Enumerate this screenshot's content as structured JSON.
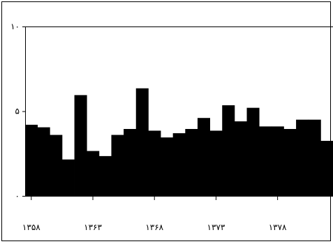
{
  "chart_data": {
    "type": "bar",
    "title": "",
    "xlabel": "",
    "ylabel": "",
    "ylim": [
      0,
      10
    ],
    "yticks": [
      {
        "value": 0,
        "label": "۰"
      },
      {
        "value": 5,
        "label": "۵"
      },
      {
        "value": 10,
        "label": "۱۰"
      }
    ],
    "xticks": [
      {
        "year": 1358,
        "label": "۱۳۵۸"
      },
      {
        "year": 1363,
        "label": "۱۳۶۳"
      },
      {
        "year": 1368,
        "label": "۱۳۶۸"
      },
      {
        "year": 1373,
        "label": "۱۳۷۳"
      },
      {
        "year": 1378,
        "label": "۱۳۷۸"
      }
    ],
    "categories": [
      1358,
      1359,
      1360,
      1361,
      1362,
      1363,
      1364,
      1365,
      1366,
      1367,
      1368,
      1369,
      1370,
      1371,
      1372,
      1373,
      1374,
      1375,
      1376,
      1377,
      1378,
      1379,
      1380,
      1381,
      1382
    ],
    "values": [
      4.2,
      4.05,
      3.6,
      2.15,
      5.95,
      2.65,
      2.35,
      3.6,
      3.95,
      6.35,
      3.85,
      3.45,
      3.7,
      3.95,
      4.6,
      3.85,
      5.35,
      4.4,
      5.2,
      4.1,
      4.1,
      3.95,
      4.5,
      4.5,
      3.25
    ],
    "bar_color": "#000000",
    "grid": false,
    "legend": "none"
  }
}
